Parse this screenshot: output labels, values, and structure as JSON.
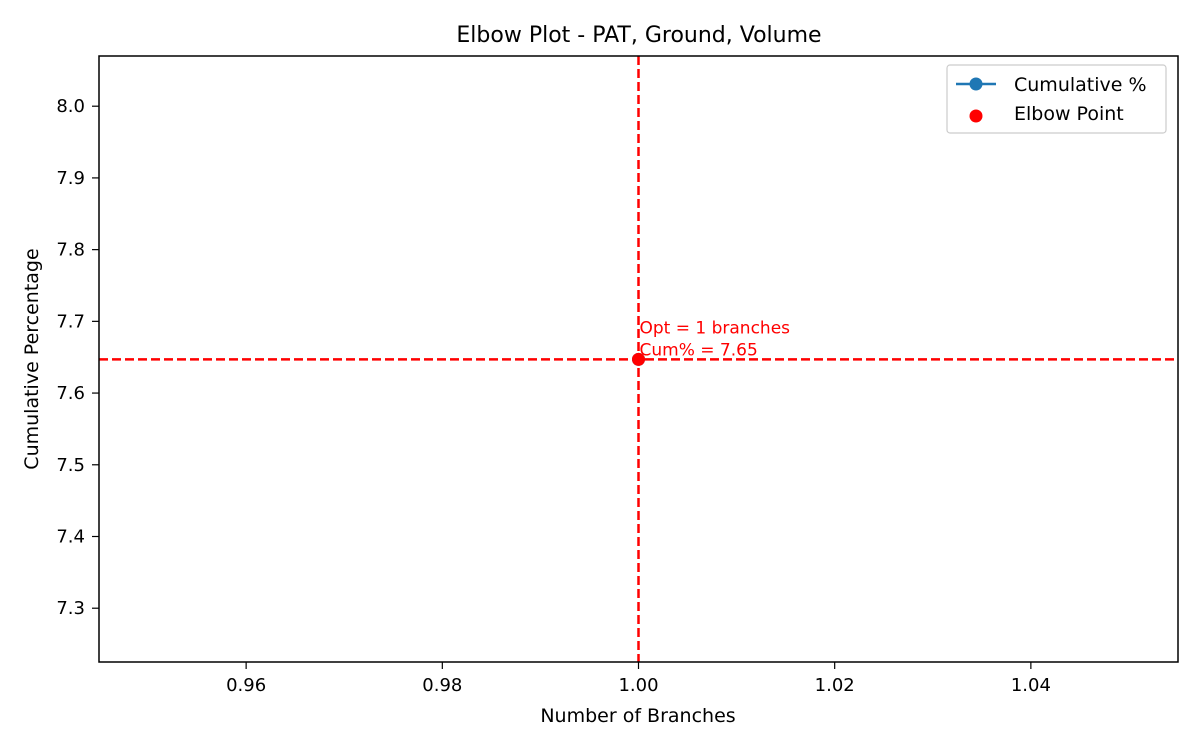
{
  "chart_data": {
    "type": "line",
    "title": "Elbow Plot - PAT, Ground, Volume",
    "xlabel": "Number of Branches",
    "ylabel": "Cumulative Percentage",
    "xlim": [
      0.945,
      1.055
    ],
    "ylim": [
      7.225,
      8.07
    ],
    "xticks": [
      0.96,
      0.98,
      1.0,
      1.02,
      1.04
    ],
    "xtick_labels": [
      "0.96",
      "0.98",
      "1.00",
      "1.02",
      "1.04"
    ],
    "yticks": [
      7.3,
      7.4,
      7.5,
      7.6,
      7.7,
      7.8,
      7.9,
      8.0
    ],
    "ytick_labels": [
      "7.3",
      "7.4",
      "7.5",
      "7.6",
      "7.7",
      "7.8",
      "7.9",
      "8.0"
    ],
    "grid": false,
    "series": [
      {
        "name": "Cumulative %",
        "kind": "line-marker",
        "color": "#1f77b4",
        "x": [
          1.0
        ],
        "y": [
          7.647
        ]
      },
      {
        "name": "Elbow Point",
        "kind": "scatter",
        "color": "#ff0000",
        "x": [
          1.0
        ],
        "y": [
          7.647
        ]
      }
    ],
    "reference_lines": [
      {
        "orientation": "vertical",
        "value": 1.0,
        "color": "#ff0000",
        "style": "dashed"
      },
      {
        "orientation": "horizontal",
        "value": 7.647,
        "color": "#ff0000",
        "style": "dashed"
      }
    ],
    "annotation": {
      "lines": [
        "Opt = 1 branches",
        "Cum% = 7.65"
      ],
      "x": 1.0,
      "y": 7.647,
      "color": "#ff0000"
    },
    "legend": {
      "position": "top-right",
      "entries": [
        "Cumulative %",
        "Elbow Point"
      ]
    }
  }
}
